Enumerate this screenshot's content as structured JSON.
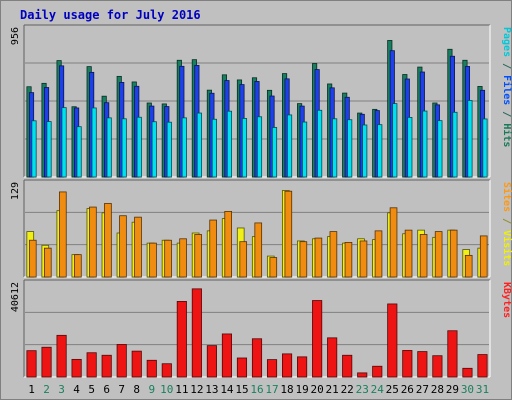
{
  "chart_data": {
    "type": "bar",
    "title": "Daily usage for July 2016",
    "categories": [
      "1",
      "2",
      "3",
      "4",
      "5",
      "6",
      "7",
      "8",
      "9",
      "10",
      "11",
      "12",
      "13",
      "14",
      "15",
      "16",
      "17",
      "18",
      "19",
      "20",
      "21",
      "22",
      "23",
      "24",
      "25",
      "26",
      "27",
      "28",
      "29",
      "30",
      "31"
    ],
    "weekend_days": [
      2,
      3,
      9,
      10,
      16,
      17,
      23,
      24,
      30,
      31
    ],
    "panels": [
      {
        "id": "top",
        "max_label": "956",
        "ymax": 956,
        "right_label_parts": [
          {
            "text": "Pages",
            "color": "#00c8d8"
          },
          {
            "text": " / ",
            "color": "#2a6a5a"
          },
          {
            "text": "Files",
            "color": "#0050ff"
          },
          {
            "text": " / ",
            "color": "#2a6a5a"
          },
          {
            "text": "Hits",
            "color": "#1a7a58"
          }
        ],
        "series": [
          {
            "name": "Hits",
            "color": "#188060",
            "values": [
              583,
              605,
              752,
              454,
              713,
              522,
              650,
              614,
              478,
              472,
              754,
              758,
              561,
              660,
              627,
              641,
              560,
              668,
              474,
              733,
              601,
              542,
              413,
              437,
              882,
              662,
              710,
              478,
              825,
              754,
              585
            ]
          },
          {
            "name": "Files",
            "color": "#1e40e8",
            "values": [
              545,
              578,
              718,
              446,
              676,
              480,
              611,
              586,
              458,
              455,
              715,
              721,
              541,
              623,
              597,
              617,
              523,
              634,
              458,
              694,
              576,
              515,
              405,
              429,
              816,
              633,
              678,
              466,
              780,
              714,
              560
            ]
          },
          {
            "name": "Pages",
            "color": "#00e0f0",
            "values": [
              363,
              358,
              448,
              325,
              446,
              382,
              376,
              386,
              357,
              354,
              382,
              413,
              373,
              425,
              378,
              389,
              320,
              401,
              355,
              431,
              376,
              370,
              336,
              338,
              474,
              385,
              426,
              364,
              418,
              494,
              375
            ]
          }
        ]
      },
      {
        "id": "middle",
        "max_label": "129",
        "ymax": 129,
        "right_label_parts": [
          {
            "text": "Sites",
            "color": "#ff9810"
          },
          {
            "text": " / ",
            "color": "#909030"
          },
          {
            "text": "Visits",
            "color": "#f0f000"
          }
        ],
        "series": [
          {
            "name": "Visits",
            "color": "#f0f018",
            "values": [
              63,
              44,
              92,
              31,
              95,
              89,
              61,
              76,
              47,
              51,
              47,
              61,
              64,
              81,
              68,
              56,
              29,
              120,
              50,
              53,
              56,
              47,
              53,
              52,
              89,
              60,
              65,
              55,
              65,
              38,
              40
            ]
          },
          {
            "name": "Sites",
            "color": "#f08c10",
            "values": [
              51,
              40,
              118,
              31,
              97,
              102,
              85,
              83,
              47,
              51,
              53,
              59,
              79,
              91,
              49,
              75,
              27,
              119,
              49,
              54,
              63,
              48,
              50,
              64,
              96,
              65,
              59,
              63,
              65,
              30,
              57
            ]
          }
        ]
      },
      {
        "id": "bottom",
        "max_label": "40612",
        "ymax": 40612,
        "right_label_parts": [
          {
            "text": "KBytes",
            "color": "#ff2020"
          }
        ],
        "series": [
          {
            "name": "KBytes",
            "color": "#ee1414",
            "values": [
              11500,
              13000,
              18200,
              7700,
              10600,
              9500,
              14200,
              11300,
              7300,
              5800,
              33000,
              38500,
              13700,
              18800,
              8300,
              16700,
              7600,
              10100,
              8800,
              33400,
              17100,
              9500,
              1800,
              4700,
              31900,
              11600,
              11100,
              9300,
              20200,
              3800,
              9800
            ]
          }
        ]
      }
    ]
  }
}
